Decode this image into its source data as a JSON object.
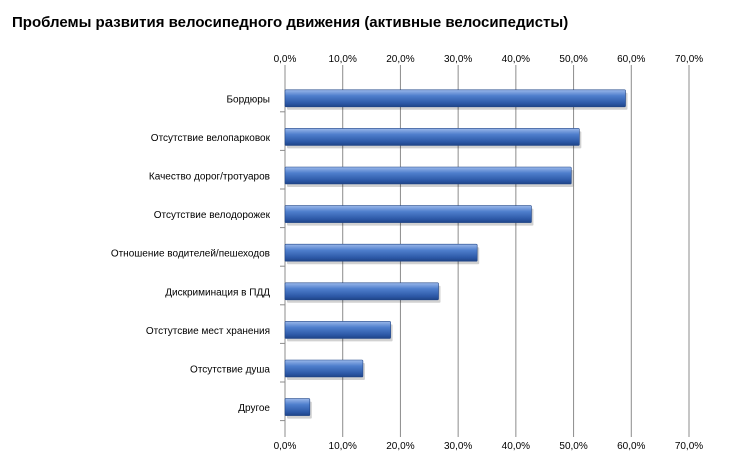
{
  "chart_data": {
    "type": "bar",
    "orientation": "horizontal",
    "title": "Проблемы развития велосипедного движения  (активные велосипедисты)",
    "xlabel": "",
    "ylabel": "",
    "xlim": [
      0,
      70
    ],
    "tick_values": [
      0,
      10,
      20,
      30,
      40,
      50,
      60,
      70
    ],
    "tick_labels": [
      "0,0%",
      "10,0%",
      "20,0%",
      "30,0%",
      "40,0%",
      "50,0%",
      "60,0%",
      "70,0%"
    ],
    "tick_labels_position": "top and bottom",
    "grid": "vertical",
    "legend": "none",
    "bar_color": "#3f70c2",
    "categories": [
      "Бордюры",
      "Отсутствие велопарковок",
      "Качество дорог/тротуаров",
      "Отсутствие велодорожек",
      "Отношение водителей/пешеходов",
      "Дискриминация в ПДД",
      "Отстутсвие мест хранения",
      "Отсутствие душа",
      "Другое"
    ],
    "values": [
      59.0,
      51.0,
      49.6,
      42.7,
      33.3,
      26.6,
      18.3,
      13.5,
      4.3
    ]
  }
}
